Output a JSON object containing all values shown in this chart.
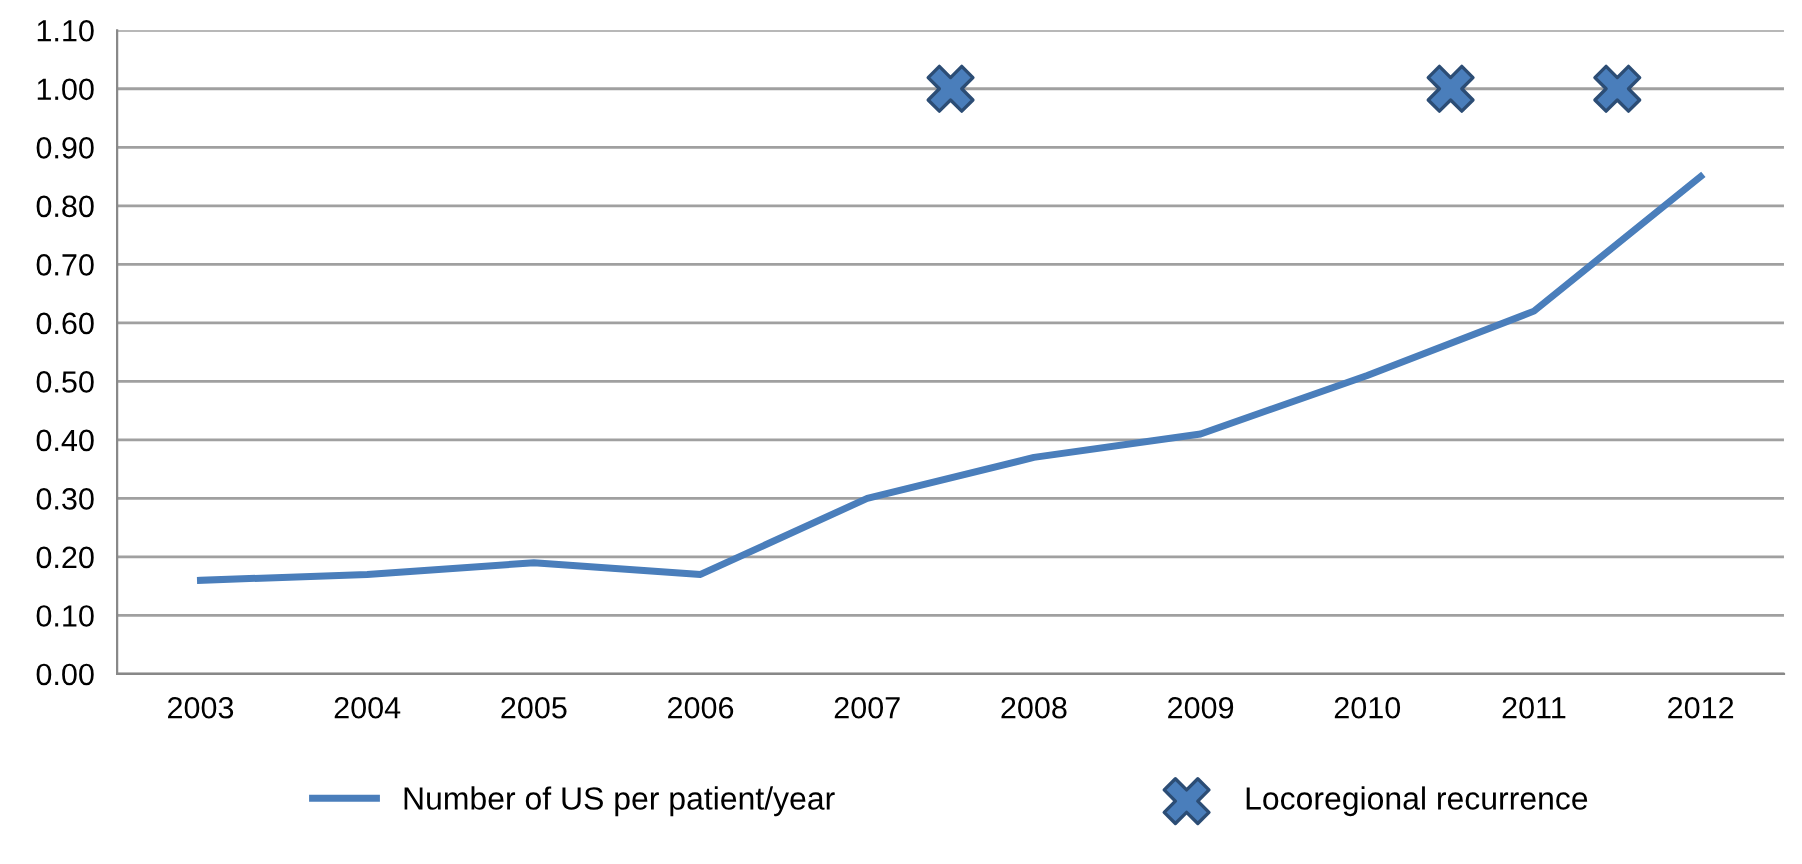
{
  "chart_data": {
    "type": "line",
    "x": [
      2003,
      2004,
      2005,
      2006,
      2007,
      2008,
      2009,
      2010,
      2011,
      2012
    ],
    "series": [
      {
        "name": "Number of US per patient/year",
        "color": "#4a7ebb",
        "marker": "none",
        "values": [
          0.16,
          0.17,
          0.19,
          0.17,
          0.3,
          0.37,
          0.41,
          0.51,
          0.62,
          0.85
        ]
      },
      {
        "name": "Locoregional recurrence",
        "type": "scatter",
        "color": "#4a7ebb",
        "marker": "cross",
        "x": [
          2007.5,
          2010.5,
          2011.5
        ],
        "values": [
          1.0,
          1.0,
          1.0
        ]
      }
    ],
    "xlim": [
      2002.5,
      2012.5
    ],
    "xticks": [
      2003,
      2004,
      2005,
      2006,
      2007,
      2008,
      2009,
      2010,
      2011,
      2012
    ],
    "ylim": [
      0,
      1.1
    ],
    "yticks": [
      {
        "value": 0,
        "label": "0.00"
      },
      {
        "value": 0.1,
        "label": "0.10"
      },
      {
        "value": 0.2,
        "label": "0.20"
      },
      {
        "value": 0.3,
        "label": "0.30"
      },
      {
        "value": 0.4,
        "label": "0.40"
      },
      {
        "value": 0.5,
        "label": "0.50"
      },
      {
        "value": 0.6,
        "label": "0.60"
      },
      {
        "value": 0.7,
        "label": "0.70"
      },
      {
        "value": 0.8,
        "label": "0.80"
      },
      {
        "value": 0.9,
        "label": "0.90"
      },
      {
        "value": 1.0,
        "label": "1.00"
      },
      {
        "value": 1.1,
        "label": "1.10"
      }
    ],
    "grid": "y",
    "legend": "bottom"
  }
}
